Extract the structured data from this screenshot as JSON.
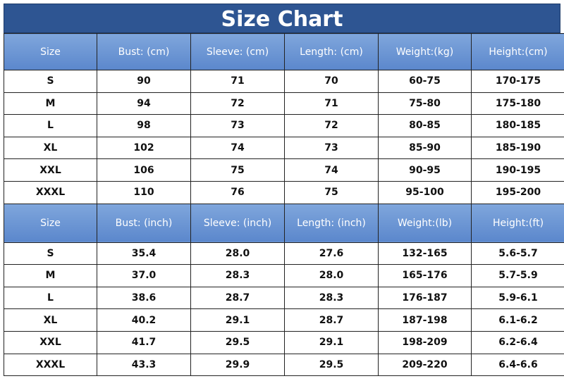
{
  "title": "Size Chart",
  "tables": [
    {
      "header": [
        "Size",
        "Bust: (cm)",
        "Sleeve: (cm)",
        "Length: (cm)",
        "Weight:(kg)",
        "Height:(cm)"
      ],
      "rows": [
        [
          "S",
          "90",
          "71",
          "70",
          "60-75",
          "170-175"
        ],
        [
          "M",
          "94",
          "72",
          "71",
          "75-80",
          "175-180"
        ],
        [
          "L",
          "98",
          "73",
          "72",
          "80-85",
          "180-185"
        ],
        [
          "XL",
          "102",
          "74",
          "73",
          "85-90",
          "185-190"
        ],
        [
          "XXL",
          "106",
          "75",
          "74",
          "90-95",
          "190-195"
        ],
        [
          "XXXL",
          "110",
          "76",
          "75",
          "95-100",
          "195-200"
        ]
      ]
    },
    {
      "header": [
        "Size",
        "Bust: (inch)",
        "Sleeve: (inch)",
        "Length: (inch)",
        "Weight:(lb)",
        "Height:(ft)"
      ],
      "rows": [
        [
          "S",
          "35.4",
          "28.0",
          "27.6",
          "132-165",
          "5.6-5.7"
        ],
        [
          "M",
          "37.0",
          "28.3",
          "28.0",
          "165-176",
          "5.7-5.9"
        ],
        [
          "L",
          "38.6",
          "28.7",
          "28.3",
          "176-187",
          "5.9-6.1"
        ],
        [
          "XL",
          "40.2",
          "29.1",
          "28.7",
          "187-198",
          "6.1-6.2"
        ],
        [
          "XXL",
          "41.7",
          "29.5",
          "29.1",
          "198-209",
          "6.2-6.4"
        ],
        [
          "XXXL",
          "43.3",
          "29.9",
          "29.5",
          "209-220",
          "6.4-6.6"
        ]
      ]
    }
  ]
}
